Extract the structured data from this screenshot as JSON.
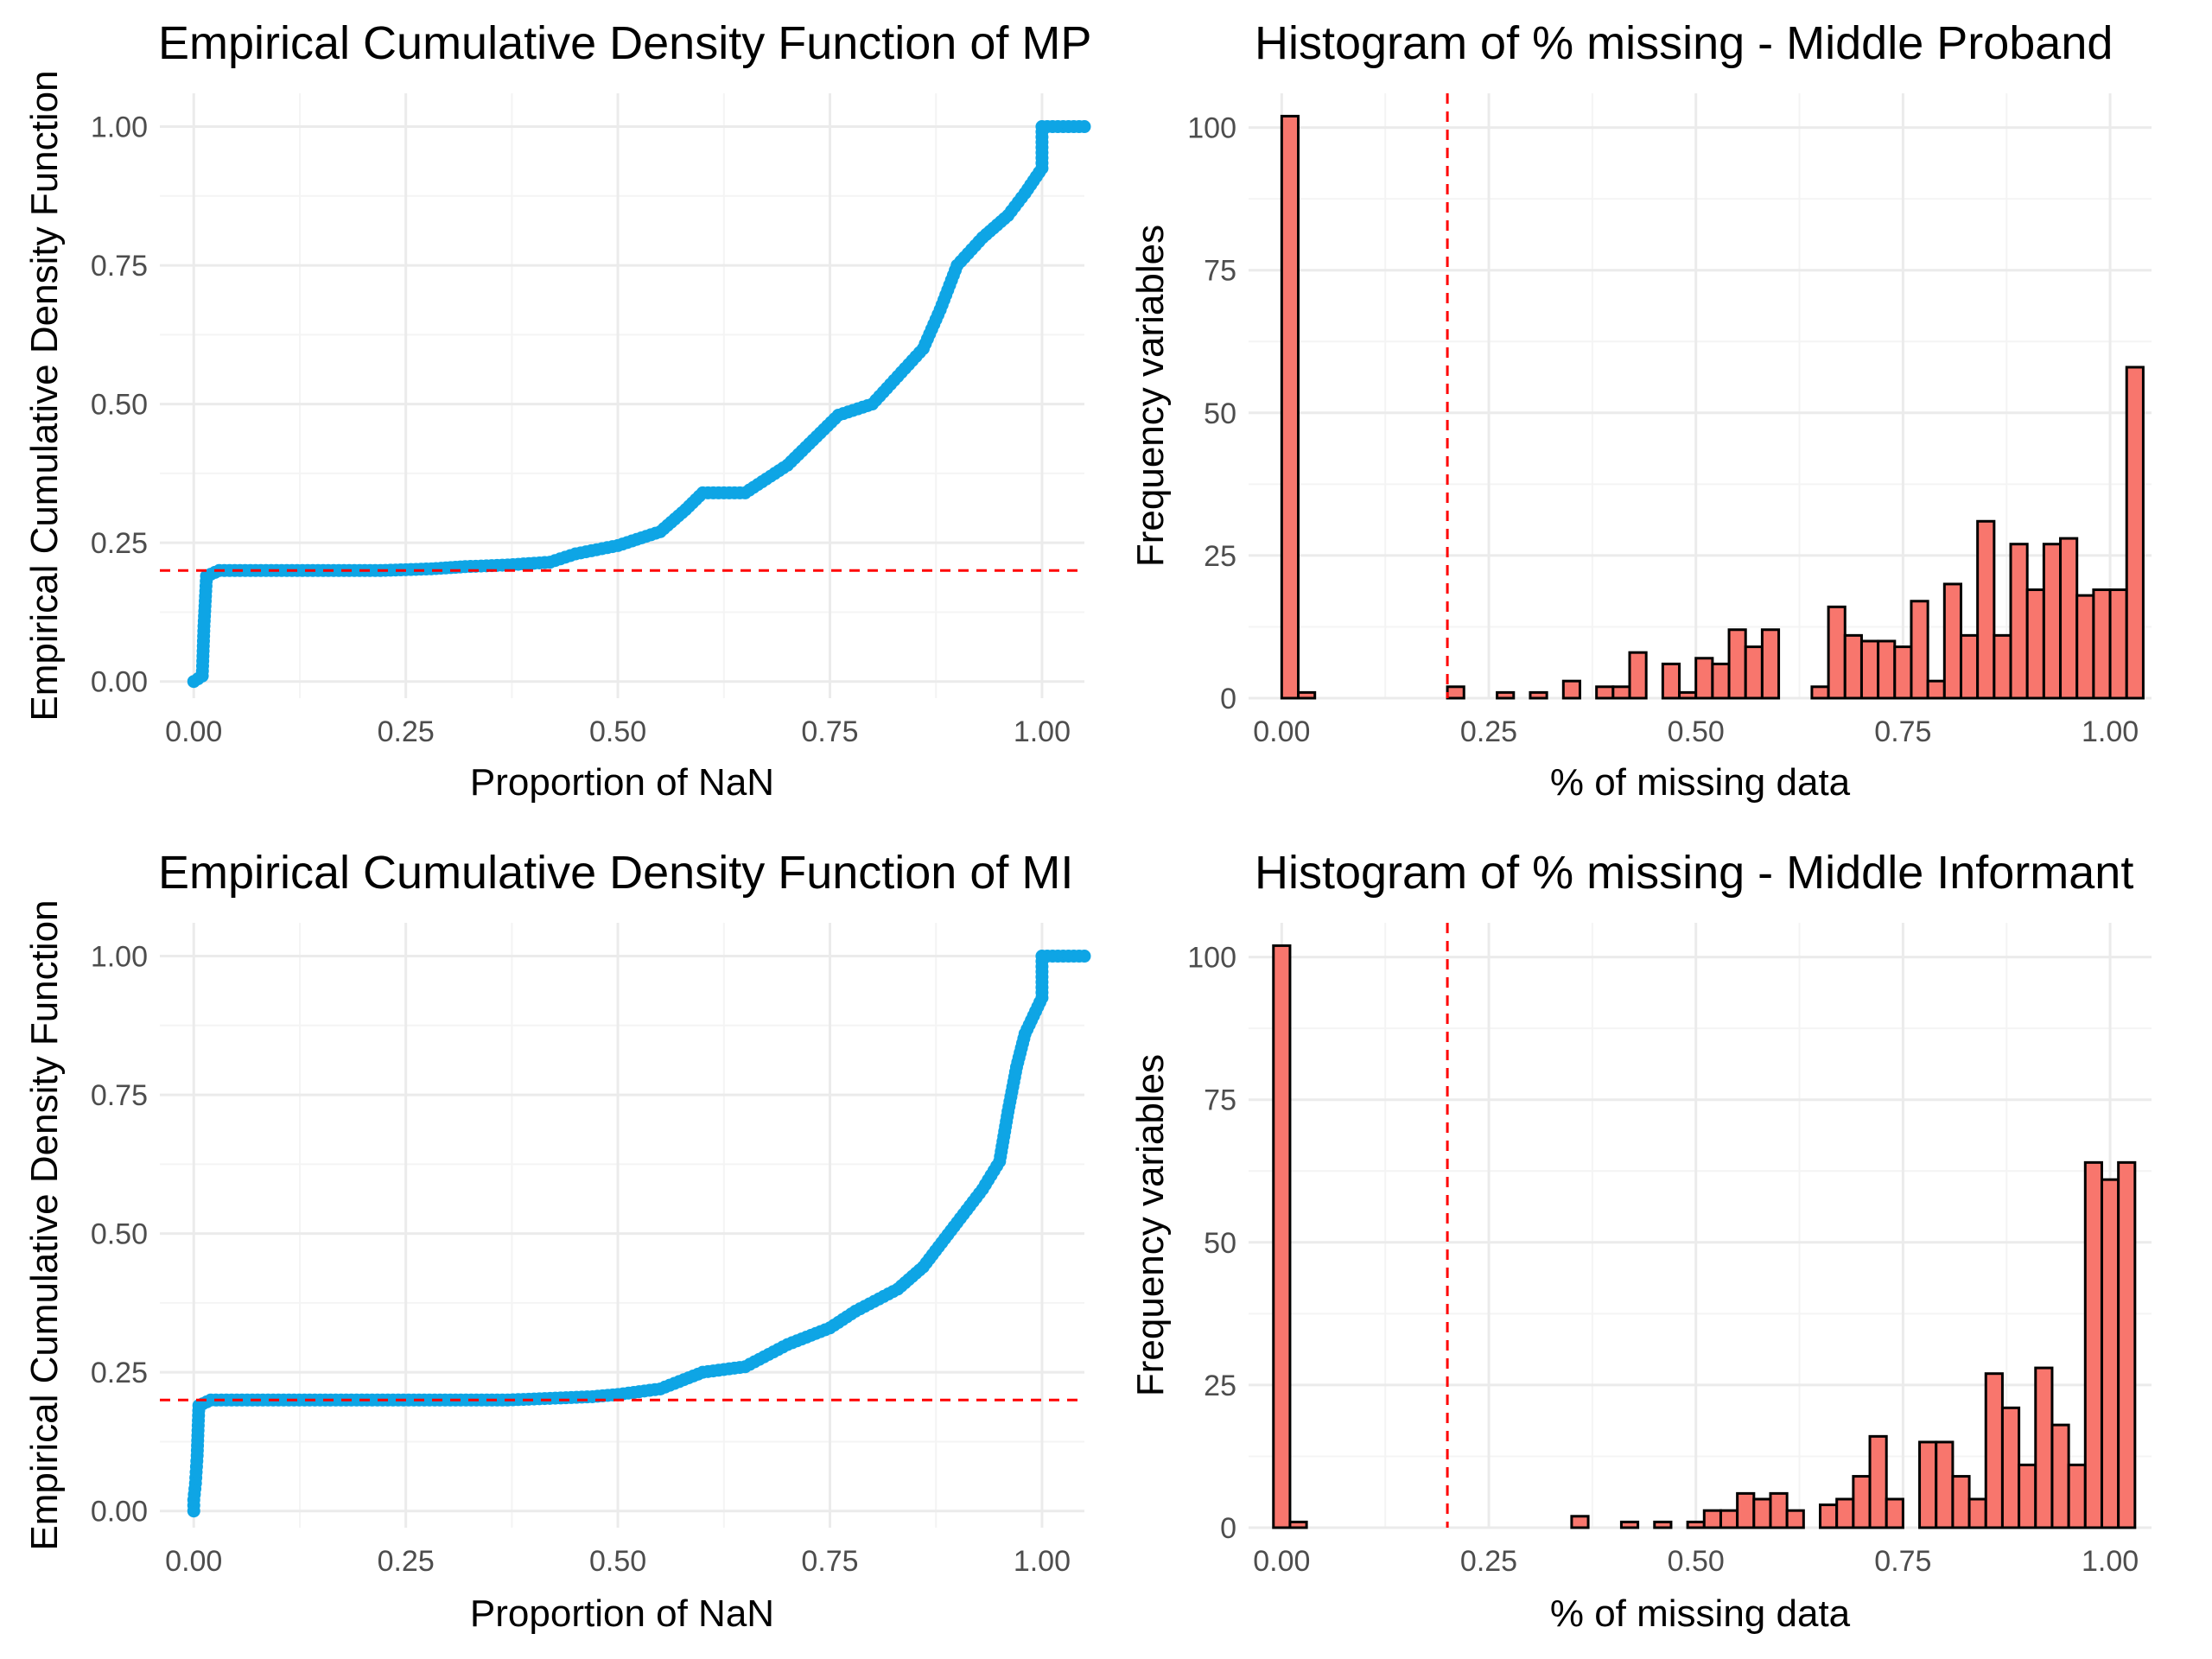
{
  "chart_data": [
    {
      "type": "scatter",
      "title": "Empirical Cumulative Density Function of MP",
      "xlabel": "Proportion of NaN",
      "ylabel": "Empirical Cumulative Density Function",
      "xlim": [
        -0.04,
        1.05
      ],
      "ylim": [
        -0.03,
        1.06
      ],
      "x_ticks": [
        "0.00",
        "0.25",
        "0.50",
        "0.75",
        "1.00"
      ],
      "y_ticks": [
        "0.00",
        "0.25",
        "0.50",
        "0.75",
        "1.00"
      ],
      "point_color": "#0ea5e5",
      "reference_line": {
        "axis": "y",
        "value": 0.2,
        "color": "#ff0000",
        "style": "dashed"
      },
      "curve": [
        [
          0.0,
          0.0
        ],
        [
          0.01,
          0.01
        ],
        [
          0.012,
          0.1
        ],
        [
          0.015,
          0.19
        ],
        [
          0.03,
          0.2
        ],
        [
          0.22,
          0.2
        ],
        [
          0.28,
          0.203
        ],
        [
          0.32,
          0.207
        ],
        [
          0.37,
          0.21
        ],
        [
          0.42,
          0.215
        ],
        [
          0.45,
          0.23
        ],
        [
          0.5,
          0.245
        ],
        [
          0.55,
          0.27
        ],
        [
          0.58,
          0.31
        ],
        [
          0.6,
          0.34
        ],
        [
          0.65,
          0.34
        ],
        [
          0.7,
          0.39
        ],
        [
          0.76,
          0.48
        ],
        [
          0.8,
          0.5
        ],
        [
          0.83,
          0.55
        ],
        [
          0.86,
          0.6
        ],
        [
          0.88,
          0.67
        ],
        [
          0.9,
          0.75
        ],
        [
          0.93,
          0.8
        ],
        [
          0.96,
          0.84
        ],
        [
          0.98,
          0.88
        ],
        [
          1.0,
          0.925
        ],
        [
          1.0,
          1.0
        ],
        [
          1.05,
          1.0
        ]
      ]
    },
    {
      "type": "bar",
      "title": "Histogram of % missing - Middle Proband",
      "xlabel": "% of missing data",
      "ylabel": "Frequency variables",
      "xlim": [
        -0.04,
        1.05
      ],
      "ylim": [
        0,
        106
      ],
      "x_ticks": [
        "0.00",
        "0.25",
        "0.50",
        "0.75",
        "1.00"
      ],
      "y_ticks": [
        "0",
        "25",
        "50",
        "75",
        "100"
      ],
      "bar_color": "#f8766d",
      "bin_start": 0.0,
      "bin_width": 0.02,
      "values": [
        102,
        1,
        0,
        0,
        0,
        0,
        0,
        0,
        0,
        0,
        2,
        0,
        0,
        1,
        0,
        1,
        0,
        3,
        0,
        2,
        2,
        8,
        0,
        6,
        1,
        7,
        6,
        12,
        9,
        12,
        0,
        0,
        2,
        16,
        11,
        10,
        10,
        9,
        17,
        3,
        20,
        11,
        31,
        11,
        27,
        19,
        27,
        28,
        18,
        19,
        19,
        58
      ],
      "reference_line": {
        "axis": "x",
        "value": 0.2,
        "color": "#ff0000",
        "style": "dashed"
      }
    },
    {
      "type": "scatter",
      "title": "Empirical Cumulative Density Function of MI",
      "xlabel": "Proportion of NaN",
      "ylabel": "Empirical Cumulative Density Function",
      "xlim": [
        -0.04,
        1.05
      ],
      "ylim": [
        -0.03,
        1.06
      ],
      "x_ticks": [
        "0.00",
        "0.25",
        "0.50",
        "0.75",
        "1.00"
      ],
      "y_ticks": [
        "0.00",
        "0.25",
        "0.50",
        "0.75",
        "1.00"
      ],
      "point_color": "#0ea5e5",
      "reference_line": {
        "axis": "y",
        "value": 0.2,
        "color": "#ff0000",
        "style": "dashed"
      },
      "curve": [
        [
          0.0,
          0.0
        ],
        [
          0.0,
          0.02
        ],
        [
          0.002,
          0.05
        ],
        [
          0.004,
          0.1
        ],
        [
          0.006,
          0.19
        ],
        [
          0.02,
          0.2
        ],
        [
          0.37,
          0.2
        ],
        [
          0.42,
          0.203
        ],
        [
          0.47,
          0.206
        ],
        [
          0.5,
          0.21
        ],
        [
          0.55,
          0.22
        ],
        [
          0.6,
          0.25
        ],
        [
          0.65,
          0.26
        ],
        [
          0.7,
          0.3
        ],
        [
          0.75,
          0.33
        ],
        [
          0.78,
          0.36
        ],
        [
          0.83,
          0.4
        ],
        [
          0.86,
          0.44
        ],
        [
          0.9,
          0.52
        ],
        [
          0.93,
          0.58
        ],
        [
          0.95,
          0.63
        ],
        [
          0.96,
          0.72
        ],
        [
          0.97,
          0.8
        ],
        [
          0.98,
          0.86
        ],
        [
          1.0,
          0.925
        ],
        [
          1.0,
          1.0
        ],
        [
          1.05,
          1.0
        ]
      ]
    },
    {
      "type": "bar",
      "title": "Histogram of % missing - Middle Informant",
      "xlabel": "% of missing data",
      "ylabel": "Frequency variables",
      "xlim": [
        -0.04,
        1.05
      ],
      "ylim": [
        0,
        106
      ],
      "x_ticks": [
        "0.00",
        "0.25",
        "0.50",
        "0.75",
        "1.00"
      ],
      "y_ticks": [
        "0",
        "25",
        "50",
        "75",
        "100"
      ],
      "bar_color": "#f8766d",
      "bin_start": -0.01,
      "bin_width": 0.02,
      "values": [
        102,
        1,
        0,
        0,
        0,
        0,
        0,
        0,
        0,
        0,
        0,
        0,
        0,
        0,
        0,
        0,
        0,
        0,
        2,
        0,
        0,
        1,
        0,
        1,
        0,
        1,
        3,
        3,
        6,
        5,
        6,
        3,
        0,
        4,
        5,
        9,
        16,
        5,
        0,
        15,
        15,
        9,
        5,
        27,
        21,
        11,
        28,
        18,
        11,
        64,
        61,
        64
      ],
      "reference_line": {
        "axis": "x",
        "value": 0.2,
        "color": "#ff0000",
        "style": "dashed"
      }
    }
  ]
}
